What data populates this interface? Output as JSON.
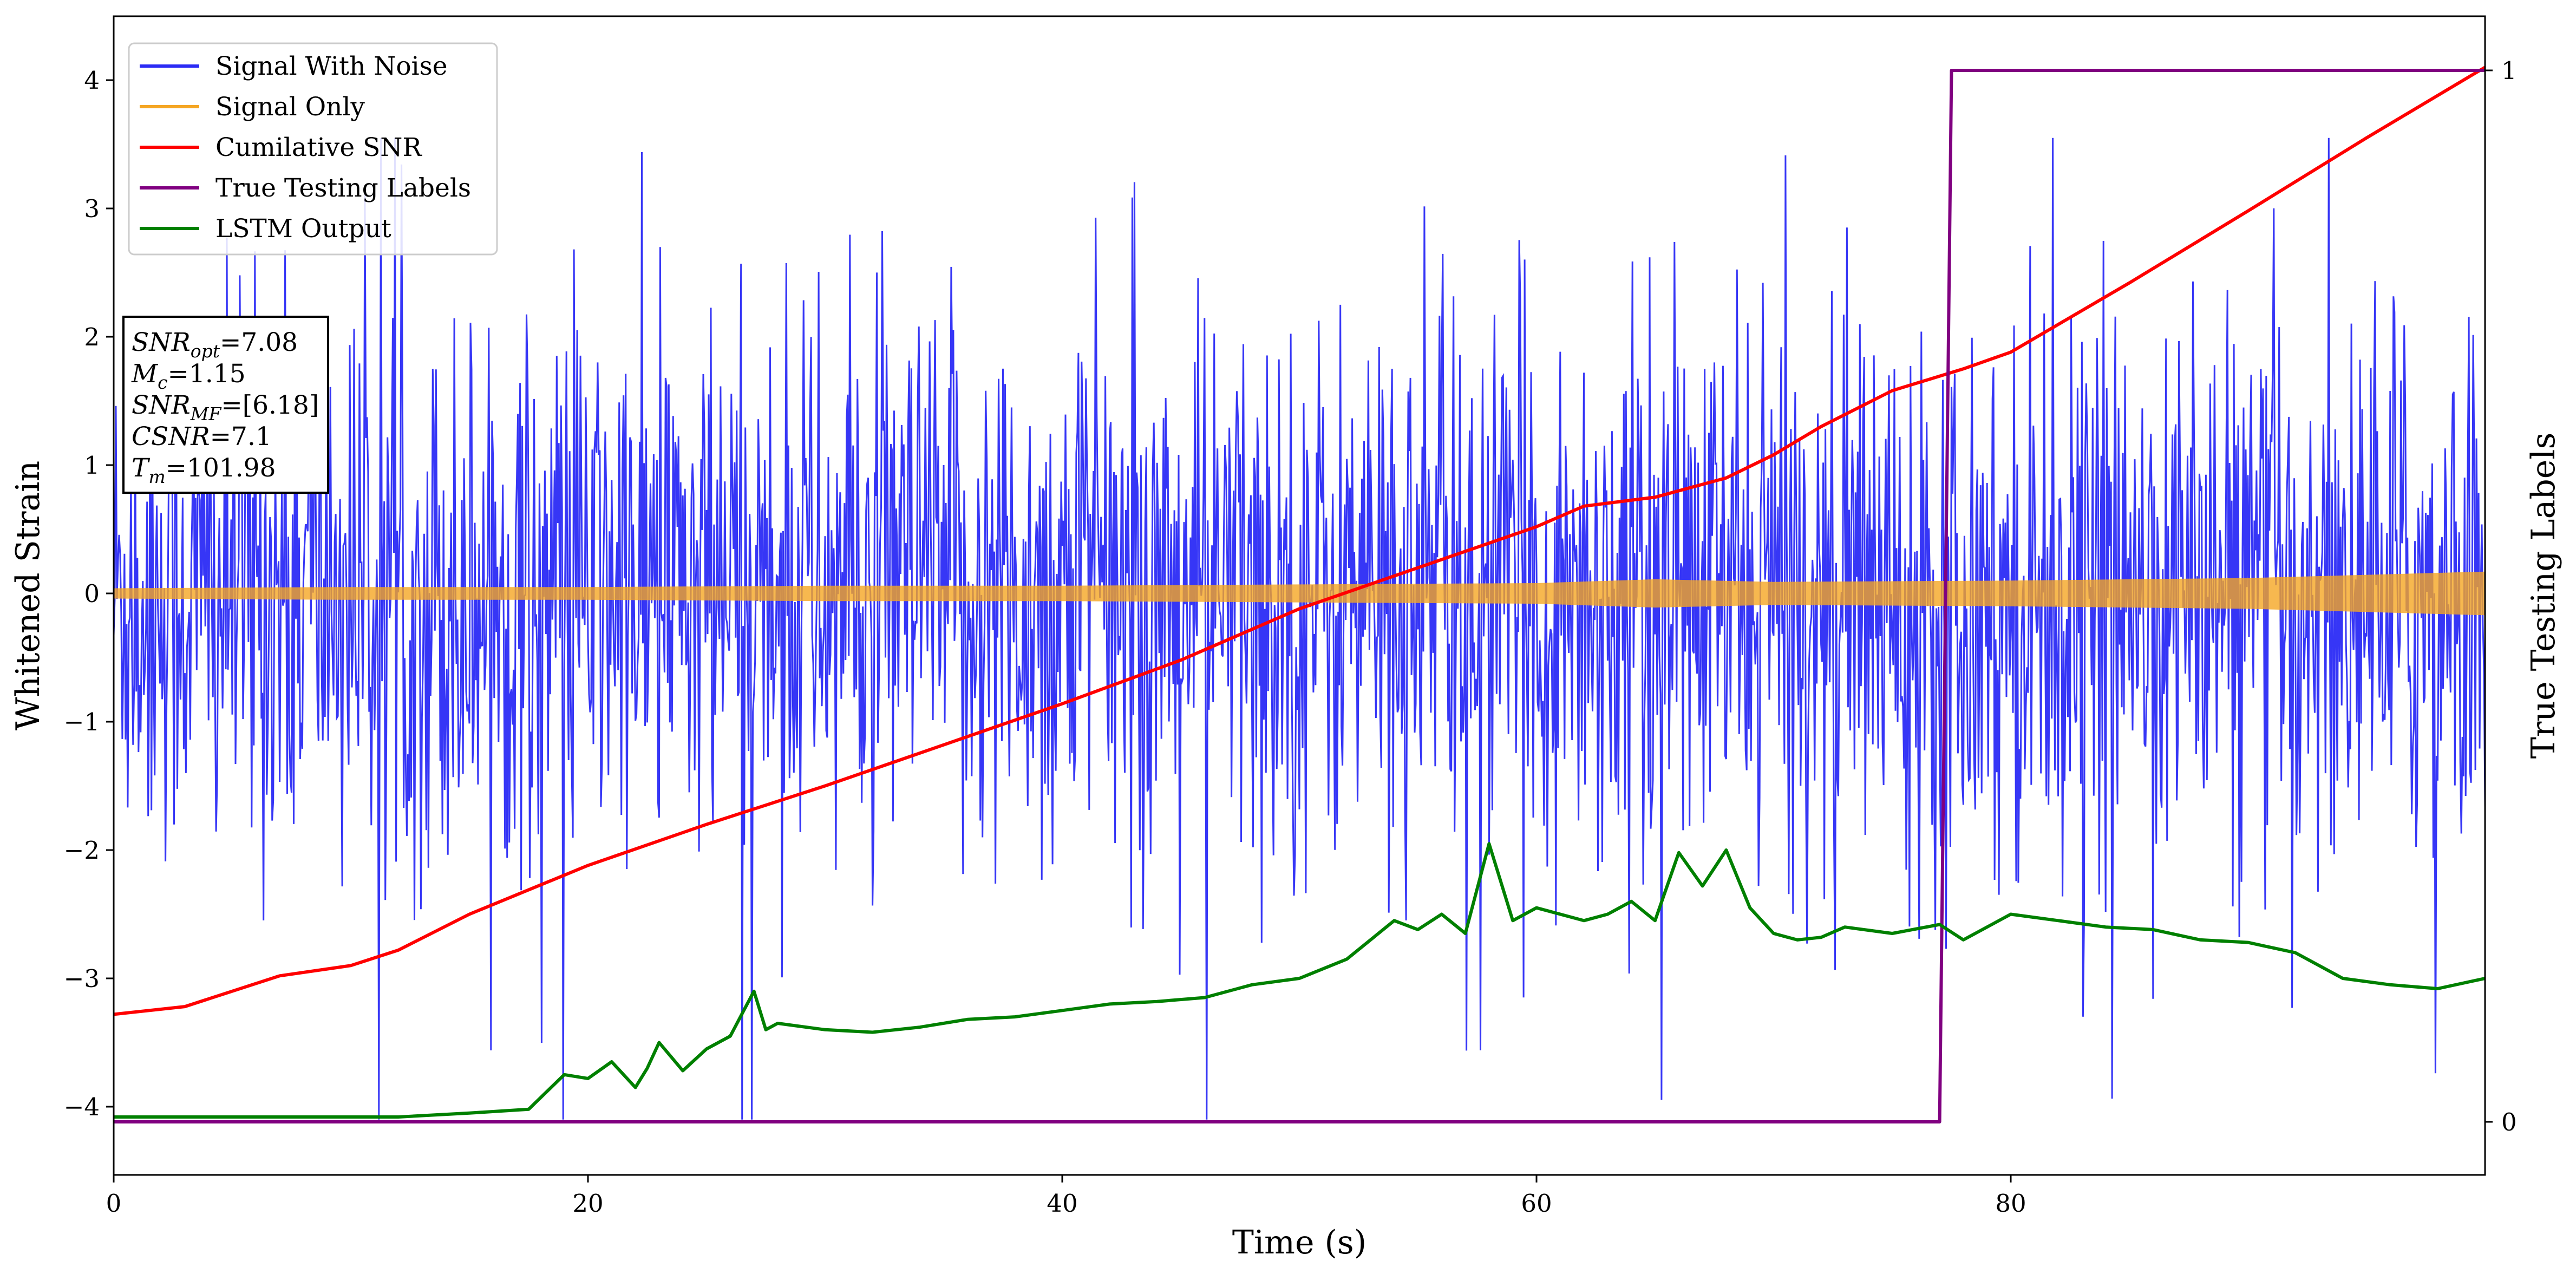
{
  "chart_data": {
    "type": "line",
    "xlabel": "Time (s)",
    "ylabel": "Whitened Strain",
    "y2label": "True Testing Labels",
    "xlim": [
      0,
      100
    ],
    "ylim": [
      -4.5,
      4.5
    ],
    "y2lim": [
      -0.05,
      1.05
    ],
    "xticks": [
      0,
      20,
      40,
      60,
      80
    ],
    "xtick_labels": [
      "0",
      "20",
      "40",
      "60",
      "80"
    ],
    "yticks": [
      4,
      3,
      2,
      1,
      0,
      -1,
      -2,
      -3,
      -4
    ],
    "ytick_labels": [
      "4",
      "3",
      "2",
      "1",
      "0",
      "−1",
      "−2",
      "−3",
      "−4"
    ],
    "y2ticks": [
      1,
      0
    ],
    "y2tick_labels": [
      "1",
      "0"
    ],
    "legend_location": "top-left",
    "legend": [
      "Signal With Noise",
      "Signal Only",
      "Cumilative SNR",
      "True Testing Labels",
      "LSTM Output"
    ],
    "annotation_lines": [
      {
        "main": "SNR",
        "sub": "opt",
        "value": "=7.08"
      },
      {
        "main": "M",
        "sub": "c",
        "value": "=1.15"
      },
      {
        "main": "SNR",
        "sub": "MF",
        "value": "=[6.18]"
      },
      {
        "main": "CSNR",
        "sub": "",
        "value": "=7.1"
      },
      {
        "main": "T",
        "sub": "m",
        "value": "=101.98"
      }
    ],
    "series": [
      {
        "name": "Signal With Noise",
        "color": "#2b2bf5",
        "axis": "left",
        "style": "noise",
        "x_range": [
          0,
          100
        ],
        "min": -4.1,
        "max": 3.55
      },
      {
        "name": "Signal Only",
        "color": "#f5a623",
        "axis": "left",
        "style": "envelope",
        "x": [
          0,
          10,
          20,
          30,
          40,
          50,
          60,
          65,
          70,
          80,
          90,
          100
        ],
        "amplitude": [
          0.04,
          0.05,
          0.05,
          0.06,
          0.06,
          0.07,
          0.08,
          0.11,
          0.09,
          0.1,
          0.12,
          0.17
        ]
      },
      {
        "name": "Cumilative SNR",
        "color": "#ff0000",
        "axis": "left",
        "x": [
          0,
          3,
          5,
          7,
          10,
          12,
          15,
          20,
          25,
          30,
          35,
          40,
          45,
          50,
          55,
          60,
          62,
          65,
          68,
          70,
          72,
          75,
          78,
          80,
          85,
          90,
          95,
          100
        ],
        "y": [
          -3.28,
          -3.22,
          -3.1,
          -2.98,
          -2.9,
          -2.78,
          -2.5,
          -2.12,
          -1.8,
          -1.5,
          -1.18,
          -0.86,
          -0.52,
          -0.12,
          0.2,
          0.52,
          0.68,
          0.75,
          0.9,
          1.08,
          1.3,
          1.58,
          1.75,
          1.88,
          2.42,
          2.98,
          3.55,
          4.1
        ]
      },
      {
        "name": "True Testing Labels",
        "color": "#800080",
        "axis": "right",
        "x": [
          0,
          77,
          77.5,
          100
        ],
        "y": [
          0,
          0,
          1,
          1
        ]
      },
      {
        "name": "LSTM Output",
        "color": "#008000",
        "axis": "left",
        "x": [
          0,
          12,
          15,
          17.5,
          19,
          20,
          21,
          22,
          22.5,
          23,
          24,
          25,
          26,
          27,
          27.5,
          28,
          30,
          32,
          34,
          36,
          38,
          40,
          42,
          44,
          46,
          48,
          50,
          52,
          54,
          55,
          56,
          57,
          58,
          59,
          60,
          62,
          63,
          64,
          65,
          66,
          67,
          68,
          69,
          70,
          71,
          72,
          73,
          75,
          77,
          78,
          80,
          82,
          84,
          86,
          88,
          90,
          92,
          94,
          96,
          98,
          100
        ],
        "y": [
          -4.08,
          -4.08,
          -4.05,
          -4.02,
          -3.75,
          -3.78,
          -3.65,
          -3.85,
          -3.7,
          -3.5,
          -3.72,
          -3.55,
          -3.45,
          -3.1,
          -3.4,
          -3.35,
          -3.4,
          -3.42,
          -3.38,
          -3.32,
          -3.3,
          -3.25,
          -3.2,
          -3.18,
          -3.15,
          -3.05,
          -3.0,
          -2.85,
          -2.55,
          -2.62,
          -2.5,
          -2.65,
          -1.95,
          -2.55,
          -2.45,
          -2.55,
          -2.5,
          -2.4,
          -2.55,
          -2.02,
          -2.28,
          -2.0,
          -2.45,
          -2.65,
          -2.7,
          -2.68,
          -2.6,
          -2.65,
          -2.58,
          -2.7,
          -2.5,
          -2.55,
          -2.6,
          -2.62,
          -2.7,
          -2.72,
          -2.8,
          -3.0,
          -3.05,
          -3.08,
          -3.0
        ]
      }
    ]
  }
}
